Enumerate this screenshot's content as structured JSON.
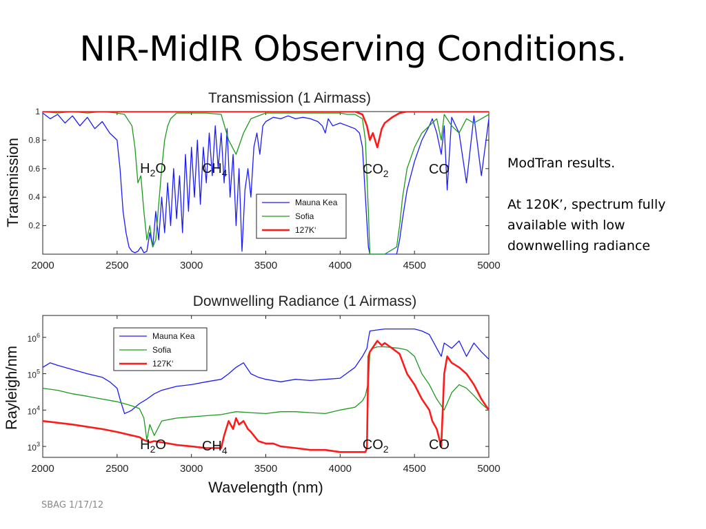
{
  "slide": {
    "title": "NIR-MidIR Observing Conditions.",
    "notes": [
      "ModTran results.",
      "At 120K’, spectrum fully",
      "available with low",
      "downwelling radiance"
    ],
    "footer": "SBAG 1/17/12"
  },
  "colors": {
    "mauna_kea": "#1a1aff",
    "sofia": "#1a9a1a",
    "k127": "#ff1a1a"
  },
  "chart_data": [
    {
      "type": "line",
      "title": "Transmission (1 Airmass)",
      "xlabel": "",
      "ylabel": "Transmission",
      "xlim": [
        2000,
        5000
      ],
      "ylim": [
        0,
        1
      ],
      "xticks": [
        2000,
        2500,
        3000,
        3500,
        4000,
        4500,
        5000
      ],
      "xtick_labels": [
        "2000",
        "2500",
        "3000",
        "3500",
        "4000",
        "4500",
        "5000"
      ],
      "yticks": [
        0.2,
        0.4,
        0.6,
        0.8,
        1
      ],
      "ytick_labels": [
        "0.2",
        "0.4",
        "0.6",
        "0.8",
        "1"
      ],
      "legend_position": "lower-right",
      "annotations": [
        {
          "base": "H",
          "sub": "2",
          "tail": "O",
          "x": 2710
        },
        {
          "base": "CH",
          "sub": "4",
          "tail": "",
          "x": 3210
        },
        {
          "base": "CO",
          "sub": "2",
          "tail": "",
          "x": 4220
        },
        {
          "base": "CO",
          "sub": "",
          "tail": "",
          "x": 4680
        }
      ],
      "series": [
        {
          "name": "Mauna Kea",
          "color": "#1a1aff",
          "x": [
            2000,
            2050,
            2100,
            2150,
            2200,
            2250,
            2300,
            2350,
            2400,
            2450,
            2500,
            2520,
            2540,
            2560,
            2580,
            2600,
            2620,
            2640,
            2660,
            2680,
            2700,
            2720,
            2740,
            2760,
            2780,
            2800,
            2820,
            2840,
            2860,
            2880,
            2900,
            2920,
            2940,
            2960,
            2980,
            3000,
            3020,
            3040,
            3060,
            3080,
            3100,
            3120,
            3140,
            3160,
            3180,
            3200,
            3220,
            3240,
            3260,
            3280,
            3300,
            3320,
            3340,
            3360,
            3380,
            3400,
            3420,
            3440,
            3460,
            3480,
            3500,
            3550,
            3600,
            3650,
            3700,
            3750,
            3800,
            3850,
            3880,
            3900,
            3920,
            3950,
            4000,
            4050,
            4100,
            4130,
            4150,
            4170,
            4190,
            4200,
            4210,
            4300,
            4380,
            4400,
            4420,
            4450,
            4500,
            4550,
            4600,
            4620,
            4650,
            4680,
            4700,
            4720,
            4750,
            4800,
            4850,
            4900,
            4950,
            5000
          ],
          "y": [
            0.99,
            0.95,
            0.98,
            0.92,
            0.97,
            0.9,
            0.96,
            0.88,
            0.93,
            0.85,
            0.8,
            0.6,
            0.3,
            0.15,
            0.05,
            0.02,
            0.01,
            0.02,
            0.05,
            0.01,
            0.02,
            0.15,
            0.05,
            0.3,
            0.1,
            0.4,
            0.15,
            0.5,
            0.2,
            0.6,
            0.25,
            0.55,
            0.15,
            0.7,
            0.3,
            0.75,
            0.4,
            0.8,
            0.35,
            0.75,
            0.5,
            0.85,
            0.55,
            0.9,
            0.6,
            0.85,
            0.5,
            0.88,
            0.4,
            0.7,
            0.2,
            0.6,
            0.02,
            0.45,
            0.6,
            0.4,
            0.75,
            0.85,
            0.7,
            0.9,
            0.93,
            0.96,
            0.95,
            0.97,
            0.95,
            0.96,
            0.95,
            0.93,
            0.9,
            0.85,
            0.95,
            0.9,
            0.92,
            0.9,
            0.88,
            0.85,
            0.75,
            0.4,
            0.05,
            0,
            0,
            0,
            0,
            0.1,
            0.25,
            0.45,
            0.65,
            0.8,
            0.9,
            0.95,
            0.85,
            0.7,
            0.9,
            0.45,
            0.96,
            0.85,
            0.5,
            0.97,
            0.55,
            0.95
          ]
        },
        {
          "name": "Sofia",
          "color": "#1a9a1a",
          "x": [
            2000,
            2100,
            2200,
            2300,
            2400,
            2500,
            2550,
            2600,
            2620,
            2640,
            2660,
            2680,
            2700,
            2720,
            2740,
            2760,
            2780,
            2800,
            2820,
            2840,
            2860,
            2900,
            3000,
            3100,
            3200,
            3250,
            3300,
            3350,
            3400,
            3500,
            3600,
            3700,
            3800,
            3900,
            4000,
            4050,
            4100,
            4150,
            4170,
            4190,
            4200,
            4210,
            4300,
            4380,
            4400,
            4420,
            4450,
            4500,
            4550,
            4600,
            4650,
            4680,
            4700,
            4750,
            4800,
            4850,
            4900,
            4950,
            5000
          ],
          "y": [
            1,
            0.99,
            1,
            0.99,
            1,
            0.99,
            0.98,
            0.9,
            0.75,
            0.5,
            0.55,
            0.3,
            0.1,
            0.2,
            0.05,
            0.1,
            0.35,
            0.6,
            0.8,
            0.9,
            0.95,
            0.99,
            0.99,
            0.99,
            0.98,
            0.8,
            0.7,
            0.85,
            0.95,
            0.99,
            0.99,
            0.99,
            0.99,
            0.99,
            0.99,
            0.98,
            0.98,
            0.95,
            0.8,
            0.3,
            0,
            0,
            0,
            0.05,
            0.2,
            0.4,
            0.6,
            0.75,
            0.85,
            0.9,
            0.95,
            0.8,
            0.98,
            0.9,
            0.85,
            0.95,
            0.92,
            0.95,
            0.98
          ]
        },
        {
          "name": "127K‘",
          "color": "#ff1a1a",
          "x": [
            2000,
            2500,
            3000,
            3500,
            4000,
            4100,
            4150,
            4180,
            4200,
            4220,
            4250,
            4280,
            4300,
            4350,
            4400,
            4450,
            4500,
            5000
          ],
          "y": [
            1,
            1,
            1,
            1,
            1,
            1,
            0.98,
            0.9,
            0.8,
            0.85,
            0.75,
            0.88,
            0.92,
            0.96,
            0.99,
            1,
            1,
            1
          ]
        }
      ]
    },
    {
      "type": "line",
      "title": "Downwelling Radiance (1 Airmass)",
      "xlabel": "Wavelength (nm)",
      "ylabel": "Rayleigh/nm",
      "xlim": [
        2000,
        5000
      ],
      "ylim": [
        500,
        4000000
      ],
      "y_scale": "log",
      "xticks": [
        2000,
        2500,
        3000,
        3500,
        4000,
        4500,
        5000
      ],
      "xtick_labels": [
        "2000",
        "2500",
        "3000",
        "3500",
        "4000",
        "4500",
        "5000"
      ],
      "yticks": [
        1000,
        10000,
        100000,
        1000000
      ],
      "ytick_labels": [
        {
          "base": "10",
          "exp": "3"
        },
        {
          "base": "10",
          "exp": "4"
        },
        {
          "base": "10",
          "exp": "5"
        },
        {
          "base": "10",
          "exp": "6"
        }
      ],
      "legend_position": "top-left",
      "annotations": [
        {
          "base": "H",
          "sub": "2",
          "tail": "O",
          "x": 2710
        },
        {
          "base": "CH",
          "sub": "4",
          "tail": "",
          "x": 3210
        },
        {
          "base": "CO",
          "sub": "2",
          "tail": "",
          "x": 4220
        },
        {
          "base": "CO",
          "sub": "",
          "tail": "",
          "x": 4680
        }
      ],
      "series": [
        {
          "name": "Mauna Kea",
          "color": "#1a1aff",
          "x": [
            2000,
            2050,
            2100,
            2200,
            2300,
            2400,
            2450,
            2500,
            2520,
            2550,
            2580,
            2600,
            2650,
            2700,
            2750,
            2800,
            2900,
            3000,
            3100,
            3200,
            3250,
            3300,
            3350,
            3400,
            3450,
            3500,
            3600,
            3700,
            3800,
            3900,
            4000,
            4100,
            4150,
            4180,
            4190,
            4200,
            4250,
            4300,
            4400,
            4500,
            4550,
            4600,
            4650,
            4680,
            4700,
            4750,
            4800,
            4850,
            4900,
            4950,
            5000
          ],
          "y": [
            150000,
            200000,
            170000,
            130000,
            100000,
            80000,
            60000,
            40000,
            20000,
            8000,
            9000,
            10000,
            15000,
            20000,
            28000,
            35000,
            45000,
            50000,
            60000,
            70000,
            100000,
            150000,
            200000,
            100000,
            80000,
            70000,
            60000,
            70000,
            65000,
            70000,
            75000,
            150000,
            300000,
            500000,
            900000,
            1500000,
            1600000,
            1700000,
            1700000,
            1700000,
            1500000,
            1200000,
            500000,
            300000,
            700000,
            500000,
            800000,
            300000,
            700000,
            400000,
            250000
          ]
        },
        {
          "name": "Sofia",
          "color": "#1a9a1a",
          "x": [
            2000,
            2100,
            2200,
            2300,
            2400,
            2500,
            2550,
            2600,
            2650,
            2680,
            2700,
            2720,
            2750,
            2800,
            2850,
            2900,
            3000,
            3100,
            3200,
            3300,
            3400,
            3500,
            3600,
            3700,
            3800,
            3900,
            4000,
            4100,
            4150,
            4170,
            4190,
            4200,
            4220,
            4250,
            4300,
            4400,
            4450,
            4500,
            4550,
            4600,
            4650,
            4700,
            4750,
            4800,
            4850,
            4900,
            4950,
            5000
          ],
          "y": [
            40000,
            35000,
            28000,
            24000,
            20000,
            17000,
            15000,
            13000,
            11000,
            6000,
            1500,
            4000,
            2000,
            5000,
            5500,
            6000,
            6500,
            7000,
            7500,
            9000,
            8500,
            8000,
            9000,
            9000,
            8500,
            8000,
            10000,
            12000,
            18000,
            25000,
            60000,
            400000,
            500000,
            550000,
            550000,
            500000,
            450000,
            300000,
            100000,
            50000,
            20000,
            10000,
            30000,
            50000,
            40000,
            25000,
            15000,
            10000
          ]
        },
        {
          "name": "127K‘",
          "color": "#ff1a1a",
          "x": [
            2000,
            2200,
            2400,
            2500,
            2600,
            2650,
            2680,
            2700,
            2720,
            2750,
            2800,
            2900,
            3000,
            3100,
            3200,
            3220,
            3250,
            3280,
            3300,
            3320,
            3350,
            3380,
            3400,
            3450,
            3500,
            3550,
            3600,
            3700,
            3800,
            3900,
            4000,
            4100,
            4150,
            4170,
            4180,
            4190,
            4200,
            4250,
            4280,
            4300,
            4350,
            4400,
            4450,
            4500,
            4550,
            4600,
            4620,
            4650,
            4680,
            4700,
            4720,
            4750,
            4800,
            4850,
            4900,
            4950,
            5000
          ],
          "y": [
            5000,
            4000,
            3000,
            2500,
            2000,
            1800,
            1500,
            1400,
            1300,
            1400,
            1300,
            1100,
            1000,
            900,
            900,
            2000,
            5000,
            3000,
            6000,
            4000,
            5000,
            3000,
            2500,
            1400,
            1200,
            1200,
            1000,
            900,
            800,
            800,
            700,
            700,
            700,
            700,
            900,
            300000,
            400000,
            800000,
            600000,
            700000,
            500000,
            350000,
            100000,
            50000,
            20000,
            10000,
            5000,
            3000,
            1000,
            100000,
            300000,
            200000,
            150000,
            100000,
            50000,
            20000,
            10000
          ]
        }
      ]
    }
  ]
}
